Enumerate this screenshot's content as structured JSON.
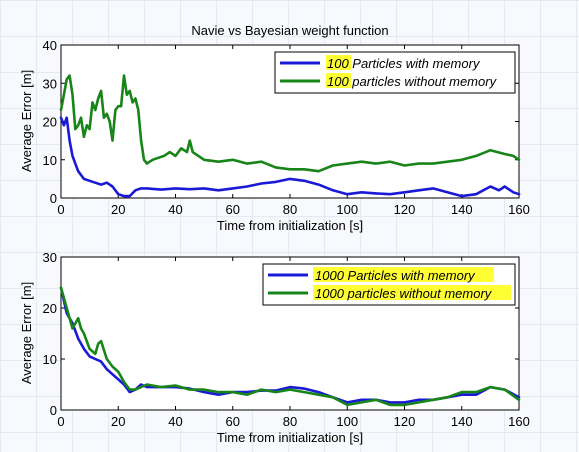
{
  "chart_data": [
    {
      "type": "line",
      "title": "Navie vs Bayesian weight function",
      "xlabel": "Time from initialization [s]",
      "ylabel": "Average Error [m]",
      "xlim": [
        0,
        160
      ],
      "ylim": [
        0,
        40
      ],
      "xticks": [
        "0",
        "20",
        "40",
        "60",
        "80",
        "100",
        "120",
        "140",
        "160"
      ],
      "yticks": [
        "0",
        "10",
        "20",
        "30",
        "40"
      ],
      "legend": "top-right",
      "highlight_color": "#ffff33",
      "series": [
        {
          "name": "100 Particles with memory",
          "highlight": "100",
          "color": "#1a1ad6",
          "x": [
            0,
            1,
            2,
            3,
            4,
            5,
            6,
            8,
            10,
            12,
            14,
            16,
            18,
            20,
            22,
            24,
            26,
            28,
            30,
            35,
            40,
            45,
            50,
            55,
            60,
            65,
            70,
            75,
            80,
            85,
            90,
            95,
            100,
            105,
            110,
            115,
            120,
            125,
            130,
            135,
            140,
            145,
            150,
            153,
            155,
            158,
            160
          ],
          "y": [
            21,
            19,
            21,
            15,
            11,
            9,
            7,
            5,
            4.5,
            4,
            3.5,
            4,
            3,
            1,
            0.5,
            0.5,
            2,
            2.5,
            2.5,
            2.2,
            2.5,
            2.3,
            2.5,
            2,
            2.5,
            3,
            3.8,
            4.2,
            5,
            4.5,
            3.5,
            2,
            1,
            1.5,
            1.2,
            1,
            1.5,
            2,
            2.5,
            1.5,
            0.5,
            1,
            3,
            2,
            3,
            1.5,
            1
          ]
        },
        {
          "name": "100 particles without memory",
          "highlight": "100",
          "color": "#188518",
          "x": [
            0,
            1,
            2,
            3,
            4,
            5,
            6,
            7,
            8,
            9,
            10,
            11,
            12,
            13,
            14,
            15,
            16,
            17,
            18,
            19,
            20,
            21,
            22,
            23,
            24,
            25,
            26,
            27,
            28,
            29,
            30,
            32,
            34,
            36,
            38,
            40,
            42,
            44,
            45,
            46,
            48,
            50,
            55,
            60,
            65,
            70,
            75,
            80,
            85,
            90,
            95,
            100,
            105,
            110,
            115,
            120,
            125,
            130,
            135,
            140,
            145,
            150,
            155,
            158,
            160
          ],
          "y": [
            23,
            27,
            31,
            32,
            27,
            18,
            19,
            21,
            16,
            19,
            18,
            25,
            23,
            26,
            28,
            21,
            22,
            20,
            15,
            23,
            24,
            24,
            32,
            27,
            28,
            25,
            26,
            23,
            15,
            10,
            9,
            10,
            10.5,
            11,
            12,
            11,
            13,
            12,
            15,
            12,
            11,
            10,
            9.5,
            10,
            9,
            9.5,
            8,
            7.5,
            7.5,
            7,
            8.5,
            9,
            9.5,
            9,
            9.5,
            8.5,
            9,
            9,
            9.5,
            10,
            11,
            12.5,
            11.5,
            11,
            10
          ]
        }
      ]
    },
    {
      "type": "line",
      "title": "",
      "xlabel": "Time from initialization [s]",
      "ylabel": "Average Error [m]",
      "xlim": [
        0,
        160
      ],
      "ylim": [
        0,
        30
      ],
      "xticks": [
        "0",
        "20",
        "40",
        "60",
        "80",
        "100",
        "120",
        "140",
        "160"
      ],
      "yticks": [
        "0",
        "10",
        "20",
        "30"
      ],
      "legend": "top-right",
      "highlight_color": "#ffff33",
      "series": [
        {
          "name": "1000 Particles with memory",
          "highlight": "full",
          "color": "#1a1ad6",
          "x": [
            0,
            2,
            4,
            6,
            8,
            10,
            12,
            14,
            16,
            18,
            20,
            22,
            24,
            26,
            28,
            30,
            35,
            40,
            45,
            50,
            55,
            60,
            65,
            70,
            75,
            80,
            85,
            90,
            95,
            100,
            105,
            110,
            115,
            120,
            125,
            130,
            135,
            140,
            145,
            150,
            155,
            160
          ],
          "y": [
            24,
            19,
            17,
            14,
            12,
            10.5,
            10,
            9.5,
            8,
            7,
            6,
            5,
            3.5,
            4,
            5,
            4.5,
            4.5,
            4.5,
            4.2,
            3.5,
            3,
            3.5,
            3.5,
            3.8,
            3.8,
            4.5,
            4.2,
            3.5,
            2.5,
            1.5,
            2,
            2,
            1.5,
            1.5,
            2,
            2,
            2.5,
            3,
            3,
            4.5,
            4,
            2.5
          ]
        },
        {
          "name": "1000 particles without memory",
          "highlight": "full",
          "color": "#188518",
          "x": [
            0,
            2,
            4,
            6,
            7,
            8,
            10,
            12,
            13,
            14,
            16,
            18,
            20,
            22,
            24,
            26,
            28,
            30,
            35,
            40,
            45,
            50,
            55,
            60,
            65,
            70,
            75,
            80,
            85,
            90,
            95,
            100,
            105,
            110,
            115,
            120,
            125,
            130,
            135,
            140,
            145,
            150,
            155,
            160
          ],
          "y": [
            24,
            20,
            16,
            18,
            16,
            15,
            12,
            11,
            13,
            13.5,
            10,
            8.5,
            7.5,
            5.5,
            4,
            4,
            4.5,
            5,
            4.5,
            4.8,
            4,
            4,
            3.5,
            3.5,
            3,
            4,
            3.5,
            4,
            3.5,
            3,
            2.5,
            1,
            1.5,
            2,
            1,
            1,
            1.5,
            2,
            2.5,
            3.5,
            3.5,
            4.5,
            4,
            2
          ]
        }
      ]
    }
  ]
}
